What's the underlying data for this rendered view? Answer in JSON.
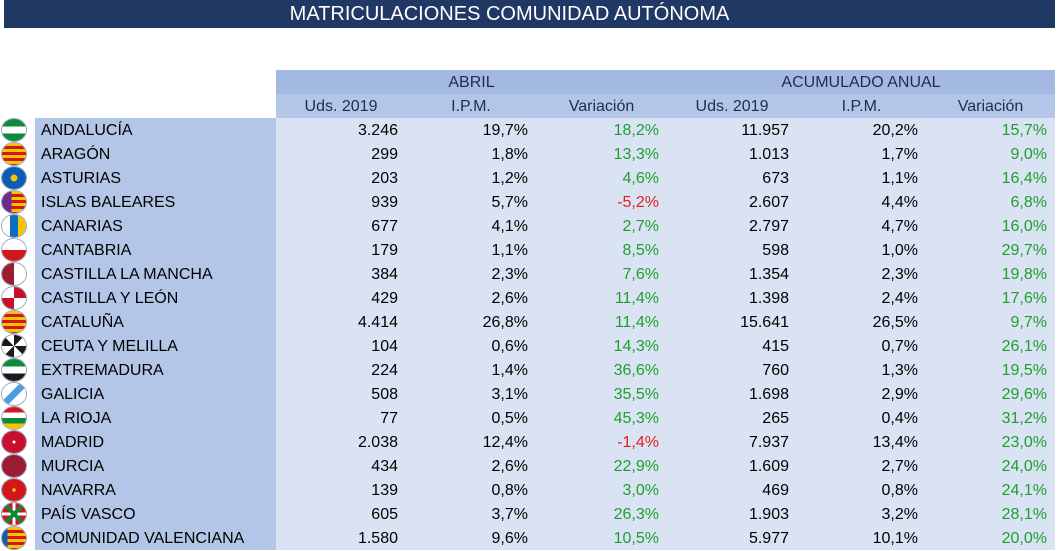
{
  "title": "MATRICULACIONES COMUNIDAD AUTÓNOMA",
  "groups": {
    "abril": "ABRIL",
    "acumulado": "ACUMULADO ANUAL"
  },
  "columns": [
    "Uds. 2019",
    "I.P.M.",
    "Variación",
    "Uds. 2019",
    "I.P.M.",
    "Variación"
  ],
  "colors": {
    "positive": "#1f9e2e",
    "negative": "#e02020",
    "header": "#b4c6e7",
    "title_bg": "#203864"
  },
  "rows": [
    {
      "name": "ANDALUCÍA",
      "flag": "andalucia-flag-icon",
      "uds": "3.246",
      "ipm": "19,7%",
      "var": "18,2%",
      "acc_uds": "11.957",
      "acc_ipm": "20,2%",
      "acc_var": "15,7%"
    },
    {
      "name": "ARAGÓN",
      "flag": "aragon-flag-icon",
      "uds": "299",
      "ipm": "1,8%",
      "var": "13,3%",
      "acc_uds": "1.013",
      "acc_ipm": "1,7%",
      "acc_var": "9,0%"
    },
    {
      "name": "ASTURIAS",
      "flag": "asturias-flag-icon",
      "uds": "203",
      "ipm": "1,2%",
      "var": "4,6%",
      "acc_uds": "673",
      "acc_ipm": "1,1%",
      "acc_var": "16,4%"
    },
    {
      "name": "ISLAS BALEARES",
      "flag": "baleares-flag-icon",
      "uds": "939",
      "ipm": "5,7%",
      "var": "-5,2%",
      "acc_uds": "2.607",
      "acc_ipm": "4,4%",
      "acc_var": "6,8%"
    },
    {
      "name": "CANARIAS",
      "flag": "canarias-flag-icon",
      "uds": "677",
      "ipm": "4,1%",
      "var": "2,7%",
      "acc_uds": "2.797",
      "acc_ipm": "4,7%",
      "acc_var": "16,0%"
    },
    {
      "name": "CANTABRIA",
      "flag": "cantabria-flag-icon",
      "uds": "179",
      "ipm": "1,1%",
      "var": "8,5%",
      "acc_uds": "598",
      "acc_ipm": "1,0%",
      "acc_var": "29,7%"
    },
    {
      "name": "CASTILLA LA MANCHA",
      "flag": "castilla-la-mancha-flag-icon",
      "uds": "384",
      "ipm": "2,3%",
      "var": "7,6%",
      "acc_uds": "1.354",
      "acc_ipm": "2,3%",
      "acc_var": "19,8%"
    },
    {
      "name": "CASTILLA Y LEÓN",
      "flag": "castilla-y-leon-flag-icon",
      "uds": "429",
      "ipm": "2,6%",
      "var": "11,4%",
      "acc_uds": "1.398",
      "acc_ipm": "2,4%",
      "acc_var": "17,6%"
    },
    {
      "name": "CATALUÑA",
      "flag": "cataluna-flag-icon",
      "uds": "4.414",
      "ipm": "26,8%",
      "var": "11,4%",
      "acc_uds": "15.641",
      "acc_ipm": "26,5%",
      "acc_var": "9,7%"
    },
    {
      "name": "CEUTA Y MELILLA",
      "flag": "ceuta-melilla-flag-icon",
      "uds": "104",
      "ipm": "0,6%",
      "var": "14,3%",
      "acc_uds": "415",
      "acc_ipm": "0,7%",
      "acc_var": "26,1%"
    },
    {
      "name": "EXTREMADURA",
      "flag": "extremadura-flag-icon",
      "uds": "224",
      "ipm": "1,4%",
      "var": "36,6%",
      "acc_uds": "760",
      "acc_ipm": "1,3%",
      "acc_var": "19,5%"
    },
    {
      "name": "GALICIA",
      "flag": "galicia-flag-icon",
      "uds": "508",
      "ipm": "3,1%",
      "var": "35,5%",
      "acc_uds": "1.698",
      "acc_ipm": "2,9%",
      "acc_var": "29,6%"
    },
    {
      "name": "LA RIOJA",
      "flag": "la-rioja-flag-icon",
      "uds": "77",
      "ipm": "0,5%",
      "var": "45,3%",
      "acc_uds": "265",
      "acc_ipm": "0,4%",
      "acc_var": "31,2%"
    },
    {
      "name": "MADRID",
      "flag": "madrid-flag-icon",
      "uds": "2.038",
      "ipm": "12,4%",
      "var": "-1,4%",
      "acc_uds": "7.937",
      "acc_ipm": "13,4%",
      "acc_var": "23,0%"
    },
    {
      "name": "MURCIA",
      "flag": "murcia-flag-icon",
      "uds": "434",
      "ipm": "2,6%",
      "var": "22,9%",
      "acc_uds": "1.609",
      "acc_ipm": "2,7%",
      "acc_var": "24,0%"
    },
    {
      "name": "NAVARRA",
      "flag": "navarra-flag-icon",
      "uds": "139",
      "ipm": "0,8%",
      "var": "3,0%",
      "acc_uds": "469",
      "acc_ipm": "0,8%",
      "acc_var": "24,1%"
    },
    {
      "name": "PAÍS VASCO",
      "flag": "pais-vasco-flag-icon",
      "uds": "605",
      "ipm": "3,7%",
      "var": "26,3%",
      "acc_uds": "1.903",
      "acc_ipm": "3,2%",
      "acc_var": "28,1%"
    },
    {
      "name": "COMUNIDAD VALENCIANA",
      "flag": "valencia-flag-icon",
      "uds": "1.580",
      "ipm": "9,6%",
      "var": "10,5%",
      "acc_uds": "5.977",
      "acc_ipm": "10,1%",
      "acc_var": "20,0%"
    }
  ]
}
